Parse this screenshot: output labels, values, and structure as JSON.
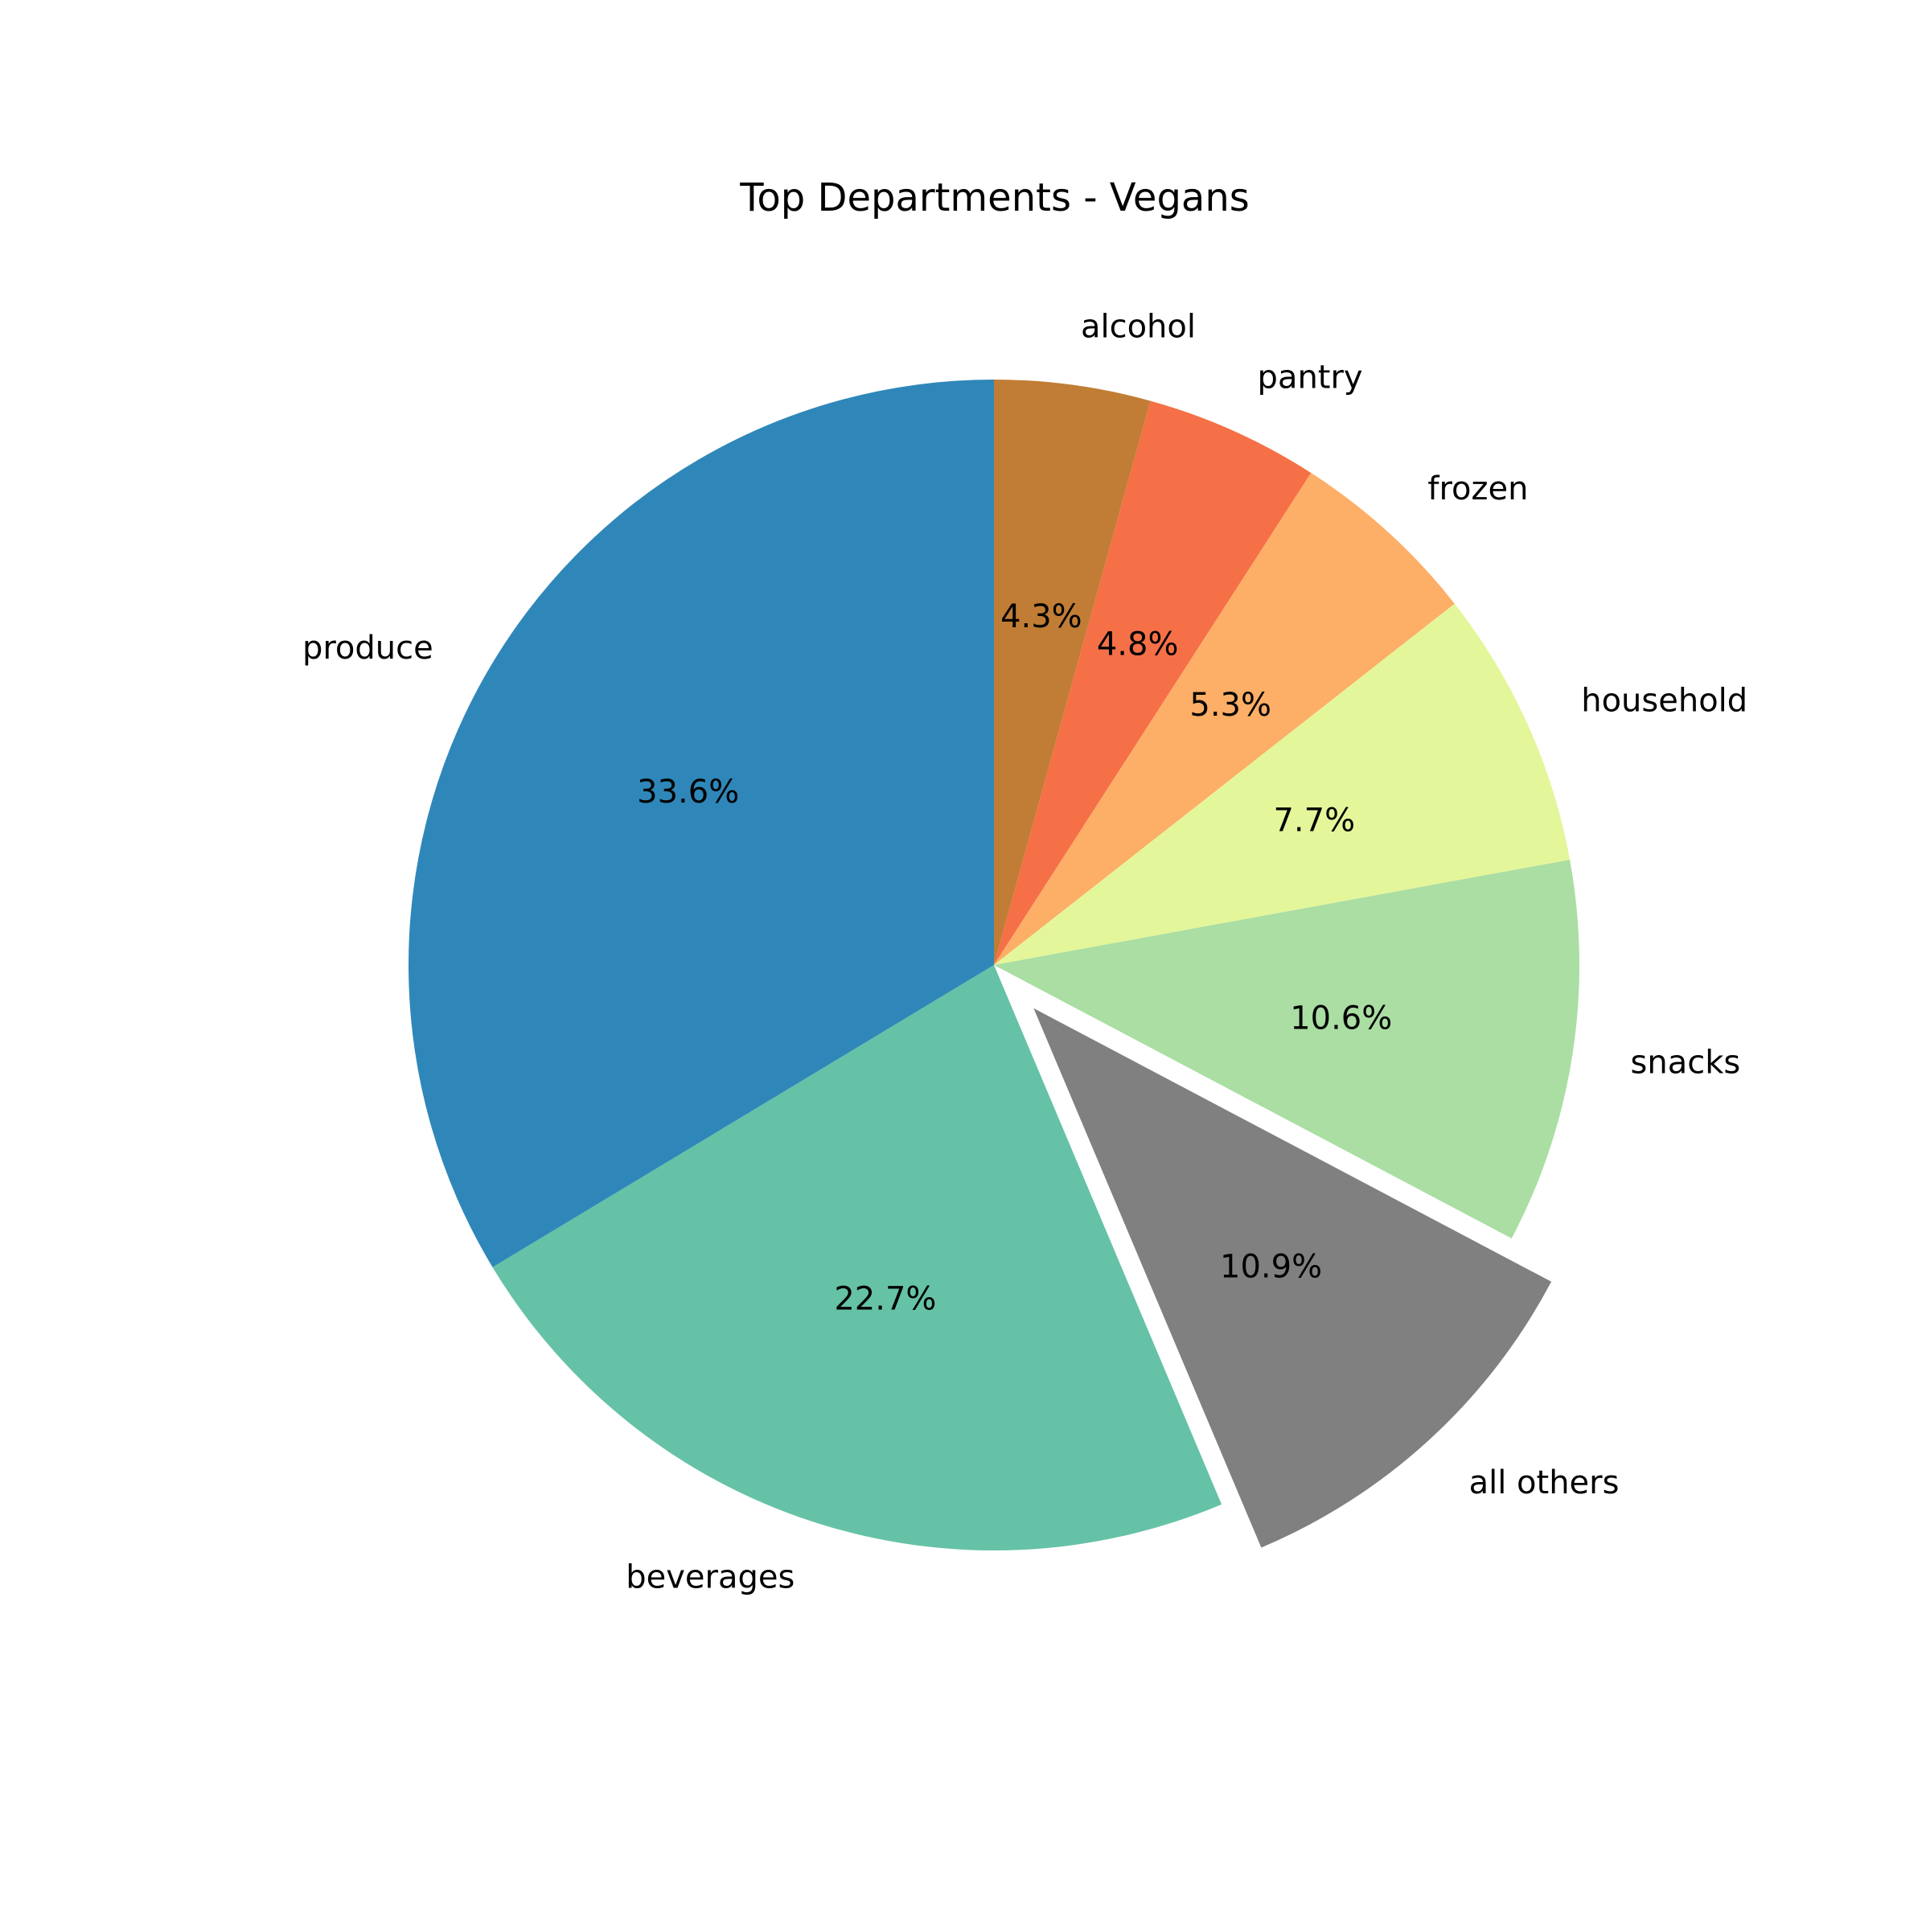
{
  "chart_data": {
    "type": "pie",
    "title": "Top Departments - Vegans",
    "categories": [
      "alcohol",
      "pantry",
      "frozen",
      "household",
      "snacks",
      "all others",
      "beverages",
      "produce"
    ],
    "values": [
      4.3,
      4.8,
      5.3,
      7.7,
      10.6,
      10.9,
      22.7,
      33.6
    ],
    "value_labels": [
      "4.3%",
      "4.8%",
      "5.3%",
      "7.7%",
      "10.6%",
      "10.9%",
      "22.7%",
      "33.6%"
    ],
    "colors": [
      "#c17d35",
      "#f57047",
      "#fdae67",
      "#e4f69a",
      "#aadea3",
      "#808080",
      "#65c2a6",
      "#2f87b9"
    ],
    "exploded": [
      "all others"
    ],
    "start_angle_deg": 90,
    "direction": "clockwise",
    "legend": "none"
  }
}
